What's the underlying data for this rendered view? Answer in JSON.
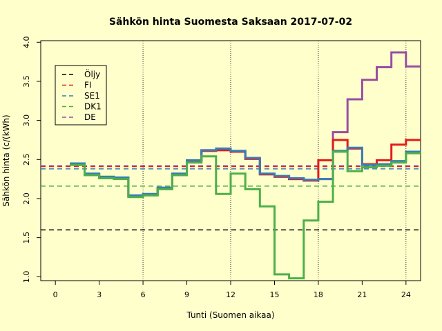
{
  "chart_data": {
    "type": "line",
    "title": "Sähkön hinta Suomesta Saksaan 2017-07-02",
    "xlabel": "Tunti (Suomen aikaa)",
    "ylabel": "Sähkön hinta (c/(kWh)",
    "xlim": [
      -1,
      25
    ],
    "ylim": [
      0.95,
      4.02
    ],
    "x_ticks": [
      0,
      3,
      6,
      9,
      12,
      15,
      18,
      21,
      24
    ],
    "y_ticks": [
      1.0,
      1.5,
      2.0,
      2.5,
      3.0,
      3.5,
      4.0
    ],
    "y_tick_labels": [
      "1.0",
      "1.5",
      "2.0",
      "2.5",
      "3.0",
      "3.5",
      "4.0"
    ],
    "vlines": [
      6,
      12,
      18,
      24
    ],
    "step": true,
    "hours": [
      1,
      2,
      3,
      4,
      5,
      6,
      7,
      8,
      9,
      10,
      11,
      12,
      13,
      14,
      15,
      16,
      17,
      18,
      19,
      20,
      21,
      22,
      23,
      24,
      25
    ],
    "legend": {
      "position": "top-left",
      "entries": [
        {
          "label": "Öljy",
          "color": "#000000"
        },
        {
          "label": "FI",
          "color": "#E41A1C"
        },
        {
          "label": "SE1",
          "color": "#377EB8"
        },
        {
          "label": "DK1",
          "color": "#4DAF4A"
        },
        {
          "label": "DE",
          "color": "#984EA3"
        }
      ]
    },
    "reference_lines": [
      {
        "label": "Öljy",
        "value": 1.6,
        "color": "#000000"
      },
      {
        "label": "FI",
        "value": 2.41,
        "color": "#E41A1C"
      },
      {
        "label": "SE1",
        "value": 2.38,
        "color": "#377EB8"
      },
      {
        "label": "DK1",
        "value": 2.16,
        "color": "#4DAF4A"
      },
      {
        "label": "DE",
        "value": 2.42,
        "color": "#984EA3"
      }
    ],
    "series": [
      {
        "label": "DE",
        "color": "#984EA3",
        "values": [
          2.44,
          2.31,
          2.27,
          2.26,
          2.03,
          2.05,
          2.13,
          2.31,
          2.48,
          2.61,
          2.62,
          2.6,
          2.51,
          2.31,
          2.28,
          2.25,
          2.24,
          2.25,
          2.85,
          3.27,
          3.52,
          3.68,
          3.87,
          3.69,
          3.69
        ]
      },
      {
        "label": "FI",
        "color": "#E41A1C",
        "values": [
          2.44,
          2.31,
          2.27,
          2.26,
          2.03,
          2.05,
          2.13,
          2.31,
          2.48,
          2.61,
          2.62,
          2.6,
          2.51,
          2.31,
          2.28,
          2.25,
          2.23,
          2.49,
          2.75,
          2.64,
          2.44,
          2.49,
          2.69,
          2.75,
          2.75
        ]
      },
      {
        "label": "SE1",
        "color": "#377EB8",
        "values": [
          2.45,
          2.32,
          2.28,
          2.27,
          2.04,
          2.06,
          2.14,
          2.32,
          2.49,
          2.62,
          2.64,
          2.61,
          2.52,
          2.32,
          2.29,
          2.26,
          2.24,
          2.25,
          2.61,
          2.65,
          2.43,
          2.44,
          2.48,
          2.6,
          2.6
        ]
      },
      {
        "label": "DK1",
        "color": "#4DAF4A",
        "values": [
          2.43,
          2.3,
          2.26,
          2.25,
          2.02,
          2.04,
          2.12,
          2.3,
          2.46,
          2.54,
          2.06,
          2.32,
          2.12,
          1.9,
          1.03,
          0.98,
          1.72,
          1.96,
          2.6,
          2.35,
          2.4,
          2.42,
          2.46,
          2.58,
          2.58
        ]
      }
    ]
  }
}
